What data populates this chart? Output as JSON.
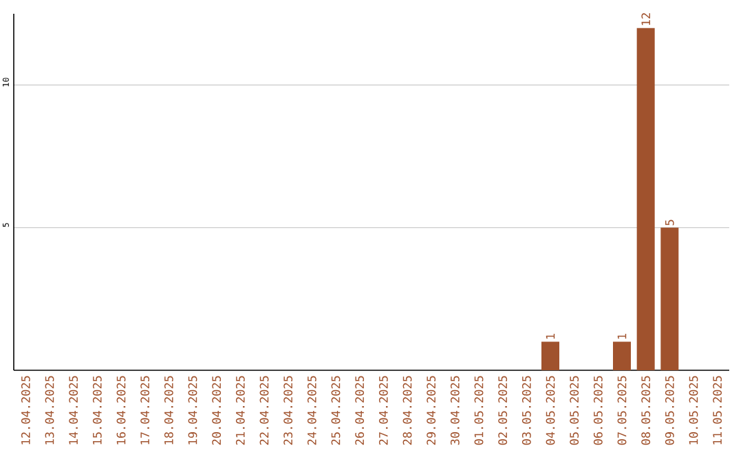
{
  "chart_data": {
    "type": "bar",
    "categories": [
      "12.04.2025",
      "13.04.2025",
      "14.04.2025",
      "15.04.2025",
      "16.04.2025",
      "17.04.2025",
      "18.04.2025",
      "19.04.2025",
      "20.04.2025",
      "21.04.2025",
      "22.04.2025",
      "23.04.2025",
      "24.04.2025",
      "25.04.2025",
      "26.04.2025",
      "27.04.2025",
      "28.04.2025",
      "29.04.2025",
      "30.04.2025",
      "01.05.2025",
      "02.05.2025",
      "03.05.2025",
      "04.05.2025",
      "05.05.2025",
      "06.05.2025",
      "07.05.2025",
      "08.05.2025",
      "09.05.2025",
      "10.05.2025",
      "11.05.2025"
    ],
    "values": [
      0,
      0,
      0,
      0,
      0,
      0,
      0,
      0,
      0,
      0,
      0,
      0,
      0,
      0,
      0,
      0,
      0,
      0,
      0,
      0,
      0,
      0,
      1,
      0,
      0,
      1,
      12,
      5,
      0,
      0
    ],
    "value_labels": [
      null,
      null,
      null,
      null,
      null,
      null,
      null,
      null,
      null,
      null,
      null,
      null,
      null,
      null,
      null,
      null,
      null,
      null,
      null,
      null,
      null,
      null,
      "1",
      null,
      null,
      "1",
      "12",
      "5",
      null,
      null
    ],
    "color": "#a0522d",
    "ylim": [
      0,
      12.5
    ],
    "yticks": [
      5,
      10
    ],
    "grid": "y"
  }
}
